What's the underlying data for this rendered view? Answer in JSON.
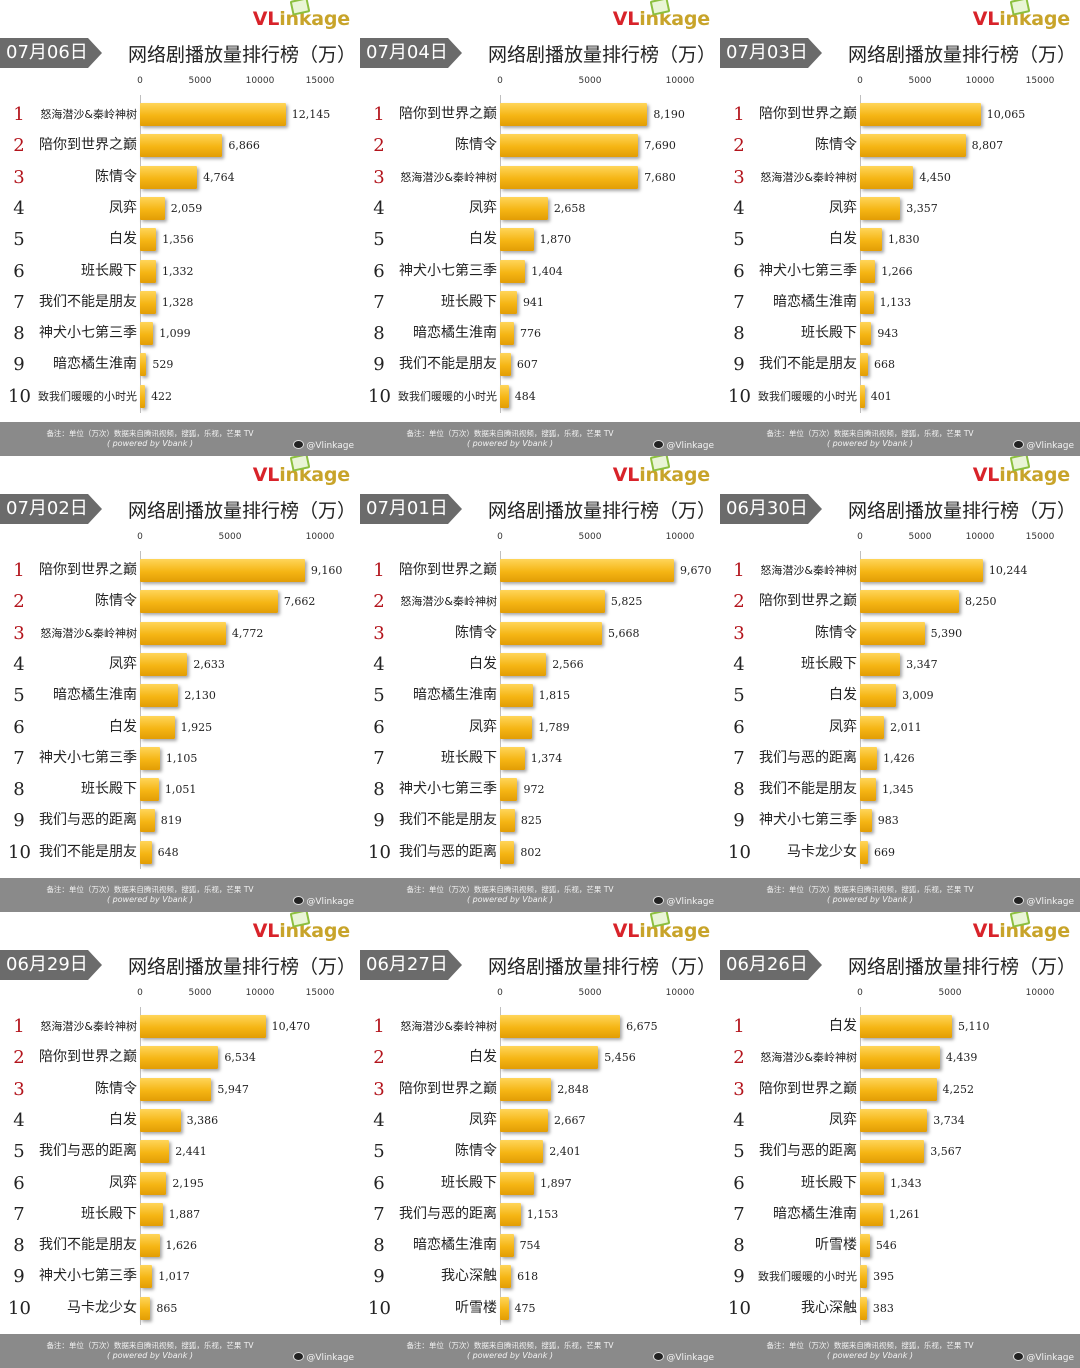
{
  "brand": {
    "v": "V",
    "l": "L",
    "rest": "inkage"
  },
  "panel_title": "网络剧播放量排行榜（万）",
  "footer": {
    "note": "备注：单位（万次）数据来自腾讯视频，搜狐，乐视，芒果 TV",
    "powered": "( powered by Vbank )",
    "weibo": "@Vlinkage"
  },
  "colors": {
    "bar": "#f5b514",
    "footer": "#8a8a8a",
    "badge": "#6b6b6b",
    "rank_top": "#b3141c"
  },
  "chart_data": [
    {
      "type": "bar",
      "date": "07月06日",
      "ticks": [
        "0",
        "5000",
        "10000",
        "15000"
      ],
      "xlim": [
        0,
        15000
      ],
      "categories": [
        "怒海潜沙&秦岭神树",
        "陪你到世界之巅",
        "陈情令",
        "凤弈",
        "白发",
        "班长殿下",
        "我们不能是朋友",
        "神犬小七第三季",
        "暗恋橘生淮南",
        "致我们暖暖的小时光"
      ],
      "values": [
        12145,
        6866,
        4764,
        2059,
        1356,
        1332,
        1328,
        1099,
        529,
        422
      ],
      "labels": [
        "12,145",
        "6,866",
        "4,764",
        "2,059",
        "1,356",
        "1,332",
        "1,328",
        "1,099",
        "529",
        "422"
      ]
    },
    {
      "type": "bar",
      "date": "07月04日",
      "ticks": [
        "0",
        "5000",
        "10000"
      ],
      "xlim": [
        0,
        10000
      ],
      "categories": [
        "陪你到世界之巅",
        "陈情令",
        "怒海潜沙&秦岭神树",
        "凤弈",
        "白发",
        "神犬小七第三季",
        "班长殿下",
        "暗恋橘生淮南",
        "我们不能是朋友",
        "致我们暖暖的小时光"
      ],
      "values": [
        8190,
        7690,
        7680,
        2658,
        1870,
        1404,
        941,
        776,
        607,
        484
      ],
      "labels": [
        "8,190",
        "7,690",
        "7,680",
        "2,658",
        "1,870",
        "1,404",
        "941",
        "776",
        "607",
        "484"
      ]
    },
    {
      "type": "bar",
      "date": "07月03日",
      "ticks": [
        "0",
        "5000",
        "10000",
        "15000"
      ],
      "xlim": [
        0,
        15000
      ],
      "categories": [
        "陪你到世界之巅",
        "陈情令",
        "怒海潜沙&秦岭神树",
        "凤弈",
        "白发",
        "神犬小七第三季",
        "暗恋橘生淮南",
        "班长殿下",
        "我们不能是朋友",
        "致我们暖暖的小时光"
      ],
      "values": [
        10065,
        8807,
        4450,
        3357,
        1830,
        1266,
        1133,
        943,
        668,
        401
      ],
      "labels": [
        "10,065",
        "8,807",
        "4,450",
        "3,357",
        "1,830",
        "1,266",
        "1,133",
        "943",
        "668",
        "401"
      ]
    },
    {
      "type": "bar",
      "date": "07月02日",
      "ticks": [
        "0",
        "5000",
        "10000"
      ],
      "xlim": [
        0,
        10000
      ],
      "categories": [
        "陪你到世界之巅",
        "陈情令",
        "怒海潜沙&秦岭神树",
        "凤弈",
        "暗恋橘生淮南",
        "白发",
        "神犬小七第三季",
        "班长殿下",
        "我们与恶的距离",
        "我们不能是朋友"
      ],
      "values": [
        9160,
        7662,
        4772,
        2633,
        2130,
        1925,
        1105,
        1051,
        819,
        648
      ],
      "labels": [
        "9,160",
        "7,662",
        "4,772",
        "2,633",
        "2,130",
        "1,925",
        "1,105",
        "1,051",
        "819",
        "648"
      ]
    },
    {
      "type": "bar",
      "date": "07月01日",
      "ticks": [
        "0",
        "5000",
        "10000"
      ],
      "xlim": [
        0,
        10000
      ],
      "categories": [
        "陪你到世界之巅",
        "怒海潜沙&秦岭神树",
        "陈情令",
        "白发",
        "暗恋橘生淮南",
        "凤弈",
        "班长殿下",
        "神犬小七第三季",
        "我们不能是朋友",
        "我们与恶的距离"
      ],
      "values": [
        9670,
        5825,
        5668,
        2566,
        1815,
        1789,
        1374,
        972,
        825,
        802
      ],
      "labels": [
        "9,670",
        "5,825",
        "5,668",
        "2,566",
        "1,815",
        "1,789",
        "1,374",
        "972",
        "825",
        "802"
      ]
    },
    {
      "type": "bar",
      "date": "06月30日",
      "ticks": [
        "0",
        "5000",
        "10000",
        "15000"
      ],
      "xlim": [
        0,
        15000
      ],
      "categories": [
        "怒海潜沙&秦岭神树",
        "陪你到世界之巅",
        "陈情令",
        "班长殿下",
        "白发",
        "凤弈",
        "我们与恶的距离",
        "我们不能是朋友",
        "神犬小七第三季",
        "马卡龙少女"
      ],
      "values": [
        10244,
        8250,
        5390,
        3347,
        3009,
        2011,
        1426,
        1345,
        983,
        669
      ],
      "labels": [
        "10,244",
        "8,250",
        "5,390",
        "3,347",
        "3,009",
        "2,011",
        "1,426",
        "1,345",
        "983",
        "669"
      ]
    },
    {
      "type": "bar",
      "date": "06月29日",
      "ticks": [
        "0",
        "5000",
        "10000",
        "15000"
      ],
      "xlim": [
        0,
        15000
      ],
      "categories": [
        "怒海潜沙&秦岭神树",
        "陪你到世界之巅",
        "陈情令",
        "白发",
        "我们与恶的距离",
        "凤弈",
        "班长殿下",
        "我们不能是朋友",
        "神犬小七第三季",
        "马卡龙少女"
      ],
      "values": [
        10470,
        6534,
        5947,
        3386,
        2441,
        2195,
        1887,
        1626,
        1017,
        865
      ],
      "labels": [
        "10,470",
        "6,534",
        "5,947",
        "3,386",
        "2,441",
        "2,195",
        "1,887",
        "1,626",
        "1,017",
        "865"
      ]
    },
    {
      "type": "bar",
      "date": "06月27日",
      "ticks": [
        "0",
        "5000",
        "10000"
      ],
      "xlim": [
        0,
        10000
      ],
      "categories": [
        "怒海潜沙&秦岭神树",
        "白发",
        "陪你到世界之巅",
        "凤弈",
        "陈情令",
        "班长殿下",
        "我们与恶的距离",
        "暗恋橘生淮南",
        "我心深触",
        "听雪楼"
      ],
      "values": [
        6675,
        5456,
        2848,
        2667,
        2401,
        1897,
        1153,
        754,
        618,
        475
      ],
      "labels": [
        "6,675",
        "5,456",
        "2,848",
        "2,667",
        "2,401",
        "1,897",
        "1,153",
        "754",
        "618",
        "475"
      ]
    },
    {
      "type": "bar",
      "date": "06月26日",
      "ticks": [
        "0",
        "5000",
        "10000"
      ],
      "xlim": [
        0,
        10000
      ],
      "categories": [
        "白发",
        "怒海潜沙&秦岭神树",
        "陪你到世界之巅",
        "凤弈",
        "我们与恶的距离",
        "班长殿下",
        "暗恋橘生淮南",
        "听雪楼",
        "致我们暖暖的小时光",
        "我心深触"
      ],
      "values": [
        5110,
        4439,
        4252,
        3734,
        3567,
        1343,
        1261,
        546,
        395,
        383
      ],
      "labels": [
        "5,110",
        "4,439",
        "4,252",
        "3,734",
        "3,567",
        "1,343",
        "1,261",
        "546",
        "395",
        "383"
      ]
    }
  ]
}
